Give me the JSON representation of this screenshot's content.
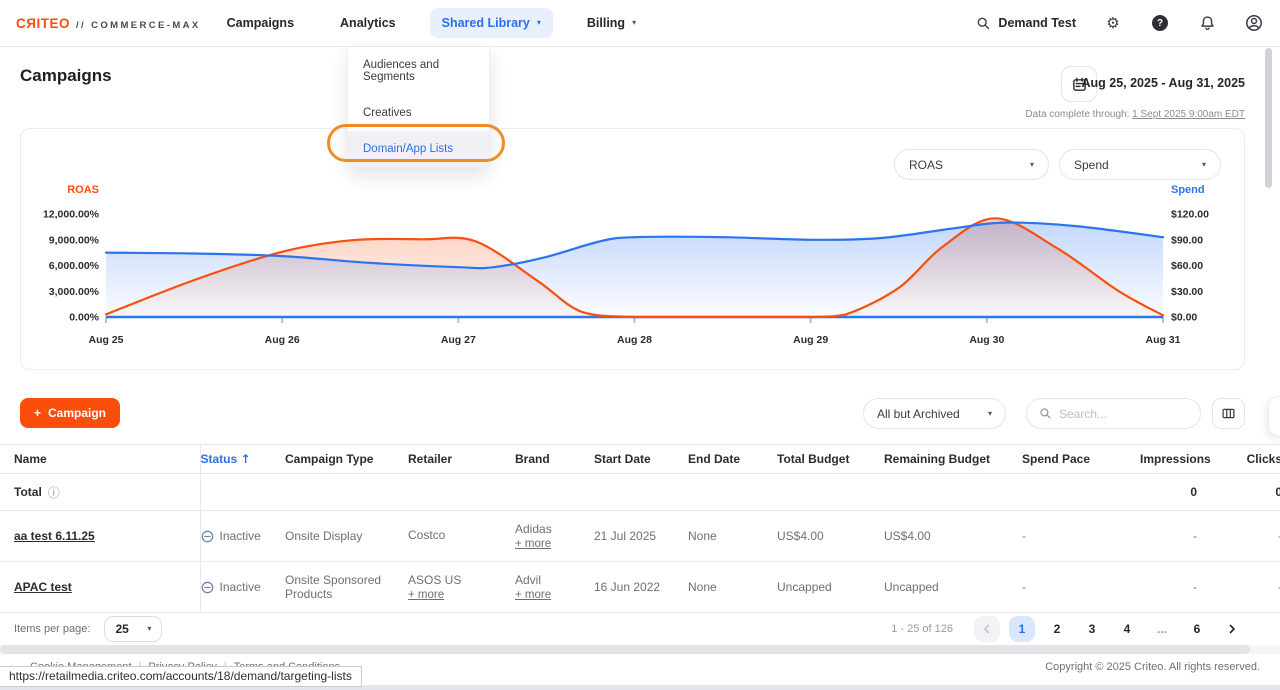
{
  "nav": {
    "brand": {
      "logo": "CЯITEO",
      "suffix": "// COMMERCE-MAX"
    },
    "items": [
      {
        "label": "Campaigns"
      },
      {
        "label": "Analytics"
      },
      {
        "label": "Shared Library"
      },
      {
        "label": "Billing"
      }
    ],
    "account_name": "Demand Test"
  },
  "menu": {
    "items": [
      {
        "label": "Audiences and Segments"
      },
      {
        "label": "Creatives"
      },
      {
        "label": "Domain/App Lists"
      }
    ]
  },
  "page": {
    "title": "Campaigns",
    "date_range": "Aug 25, 2025 - Aug 31, 2025",
    "data_complete_label": "Data complete through:",
    "data_complete_link": "1 Sept 2025 9:00am EDT"
  },
  "chart_controls": {
    "left_metric": "ROAS",
    "right_metric": "Spend"
  },
  "chart_data": {
    "type": "line",
    "x_ticks": [
      "Aug 25",
      "Aug 26",
      "Aug 27",
      "Aug 28",
      "Aug 29",
      "Aug 30",
      "Aug 31"
    ],
    "left_axis": {
      "label": "ROAS",
      "ticks": [
        "12,000.00%",
        "9,000.00%",
        "6,000.00%",
        "3,000.00%",
        "0.00%"
      ],
      "range": [
        0,
        12000
      ],
      "color": "#fa4e0c"
    },
    "right_axis": {
      "label": "Spend",
      "ticks": [
        "$120.00",
        "$90.00",
        "$60.00",
        "$30.00",
        "$0.00"
      ],
      "range": [
        0,
        120
      ],
      "color": "#2a74f0"
    },
    "grid": false,
    "legend": "none",
    "series": [
      {
        "name": "ROAS",
        "axis": "left",
        "color": "#fa4e0c",
        "x": [
          0,
          0.5,
          1,
          1.4,
          1.8,
          2.1,
          2.45,
          2.7,
          3,
          3.5,
          4,
          4.2,
          4.5,
          4.75,
          5.05,
          5.4,
          5.75,
          6
        ],
        "values": [
          300,
          4300,
          7600,
          8950,
          9050,
          8800,
          4200,
          600,
          0,
          0,
          0,
          300,
          3400,
          8200,
          11500,
          8000,
          3000,
          200
        ]
      },
      {
        "name": "Spend",
        "axis": "right",
        "color": "#2a74f0",
        "x": [
          0,
          0.5,
          1,
          1.5,
          2,
          2.2,
          2.5,
          2.8,
          3,
          3.5,
          4,
          4.4,
          4.8,
          5.1,
          5.5,
          6
        ],
        "values": [
          75,
          74,
          71,
          63,
          58,
          58,
          70,
          88,
          93,
          93,
          90,
          92,
          103,
          110,
          106,
          93
        ]
      }
    ]
  },
  "toolbar": {
    "campaign_label": "Campaign",
    "filter_value": "All but Archived",
    "search_placeholder": "Search..."
  },
  "table": {
    "headers": [
      "Name",
      "Status",
      "Campaign Type",
      "Retailer",
      "Brand",
      "Start Date",
      "End Date",
      "Total Budget",
      "Remaining Budget",
      "Spend Pace",
      "Impressions",
      "Clicks"
    ],
    "sort_indicator": "↑",
    "total": {
      "label": "Total",
      "impressions": "0",
      "clicks": "0"
    },
    "rows": [
      {
        "name": "aa test 6.11.25",
        "status": "Inactive",
        "campaign_type": "Onsite Display",
        "retailer": "Costco",
        "retailer_more": "",
        "brand": "Adidas",
        "brand_more": "+ more",
        "start_date": "21 Jul 2025",
        "end_date": "None",
        "total_budget": "US$4.00",
        "remaining_budget": "US$4.00",
        "spend_pace": "-",
        "impressions": "-",
        "clicks": "-"
      },
      {
        "name": "APAC test",
        "status": "Inactive",
        "campaign_type": "Onsite Sponsored Products",
        "retailer": "ASOS US",
        "retailer_more": "+ more",
        "brand": "Advil",
        "brand_more": "+ more",
        "start_date": "16 Jun 2022",
        "end_date": "None",
        "total_budget": "Uncapped",
        "remaining_budget": "Uncapped",
        "spend_pace": "-",
        "impressions": "-",
        "clicks": "-"
      }
    ]
  },
  "pagination": {
    "items_per_page_label": "Items per page:",
    "items_per_page": "25",
    "range": "1 - 25 of 126",
    "pages": [
      "1",
      "2",
      "3",
      "4",
      "...",
      "6"
    ],
    "current_page": "1"
  },
  "footer": {
    "links": [
      "Cookie Management",
      "Privacy Policy",
      "Terms and Conditions"
    ],
    "separator": "|",
    "copyright": "Copyright © 2025 Criteo. All rights reserved."
  },
  "status_bar": {
    "url": "https://retailmedia.criteo.com/accounts/18/demand/targeting-lists"
  },
  "icons": {
    "caret": "▾",
    "plus": "+",
    "gear": "⚙",
    "question": "?",
    "info": "ⓘ"
  }
}
